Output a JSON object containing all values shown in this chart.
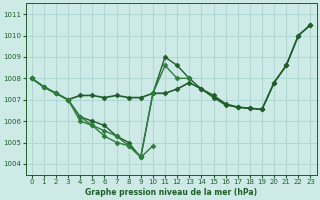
{
  "title": "Graphe pression niveau de la mer (hPa)",
  "bg_color": "#ceeae7",
  "grid_color": "#aad4d0",
  "dark_green": "#1e5e2a",
  "xlim": [
    -0.5,
    23.5
  ],
  "ylim": [
    1003.5,
    1011.5
  ],
  "yticks": [
    1004,
    1005,
    1006,
    1007,
    1008,
    1009,
    1010,
    1011
  ],
  "xticks": [
    0,
    1,
    2,
    3,
    4,
    5,
    6,
    7,
    8,
    9,
    10,
    11,
    12,
    13,
    14,
    15,
    16,
    17,
    18,
    19,
    20,
    21,
    22,
    23
  ],
  "series": [
    {
      "x": [
        0,
        1,
        2,
        3,
        4,
        5,
        6,
        7,
        8,
        9,
        10,
        11,
        12,
        13,
        14,
        15,
        16,
        17,
        18,
        19,
        20,
        21,
        22,
        23
      ],
      "y": [
        1008.0,
        1007.6,
        1007.3,
        1007.0,
        1007.2,
        1007.2,
        1007.1,
        1007.2,
        1007.1,
        1007.1,
        1007.3,
        1007.3,
        1007.5,
        1007.8,
        1007.5,
        1007.2,
        1006.8,
        1006.65,
        1006.6,
        1006.55,
        1007.8,
        1008.6,
        1010.0,
        1010.5
      ],
      "style": "-",
      "marker": "D",
      "markersize": 2.5,
      "color": "#1e5e2a",
      "linewidth": 1.2
    },
    {
      "x": [
        0,
        1,
        2,
        3,
        4,
        5,
        6,
        7,
        8,
        9,
        10,
        11,
        12,
        13,
        14,
        15,
        16,
        17,
        18,
        19,
        20,
        21,
        22,
        23
      ],
      "y": [
        1008.0,
        1007.6,
        1007.3,
        1007.0,
        1006.2,
        1006.0,
        1005.8,
        1005.3,
        1005.0,
        1004.3,
        1007.3,
        1009.0,
        1008.6,
        1008.0,
        1007.5,
        1007.1,
        1006.75,
        1006.65,
        1006.6,
        1006.55,
        1007.8,
        1008.6,
        1010.0,
        1010.5
      ],
      "style": "-",
      "marker": "D",
      "markersize": 2.5,
      "color": "#1e5e2a",
      "linewidth": 1.0
    },
    {
      "x": [
        0,
        1,
        2,
        3,
        4,
        5,
        6,
        7,
        8,
        9,
        10,
        11,
        12,
        13
      ],
      "y": [
        1008.0,
        1007.6,
        1007.3,
        1007.0,
        1006.0,
        1005.8,
        1005.55,
        1005.3,
        1004.85,
        1004.35,
        1007.3,
        1008.6,
        1008.0,
        1008.0
      ],
      "style": "-",
      "marker": "D",
      "markersize": 2.5,
      "color": "#2e7d3c",
      "linewidth": 1.0
    },
    {
      "comment": "Line4: steep descent 1007 at x=3, to 1006.2 x=4, 1005.8 x=5, 1005.3 x=6, 1005.0 x=7, 1004.85 x=8, 1004.3 x=9, jumps to 1004.8 x=10",
      "x": [
        3,
        4,
        5,
        6,
        7,
        8,
        9,
        10
      ],
      "y": [
        1007.0,
        1006.2,
        1005.8,
        1005.3,
        1005.0,
        1004.85,
        1004.3,
        1004.85
      ],
      "style": "-",
      "marker": "D",
      "markersize": 2.5,
      "color": "#2e7d3c",
      "linewidth": 1.0
    }
  ]
}
